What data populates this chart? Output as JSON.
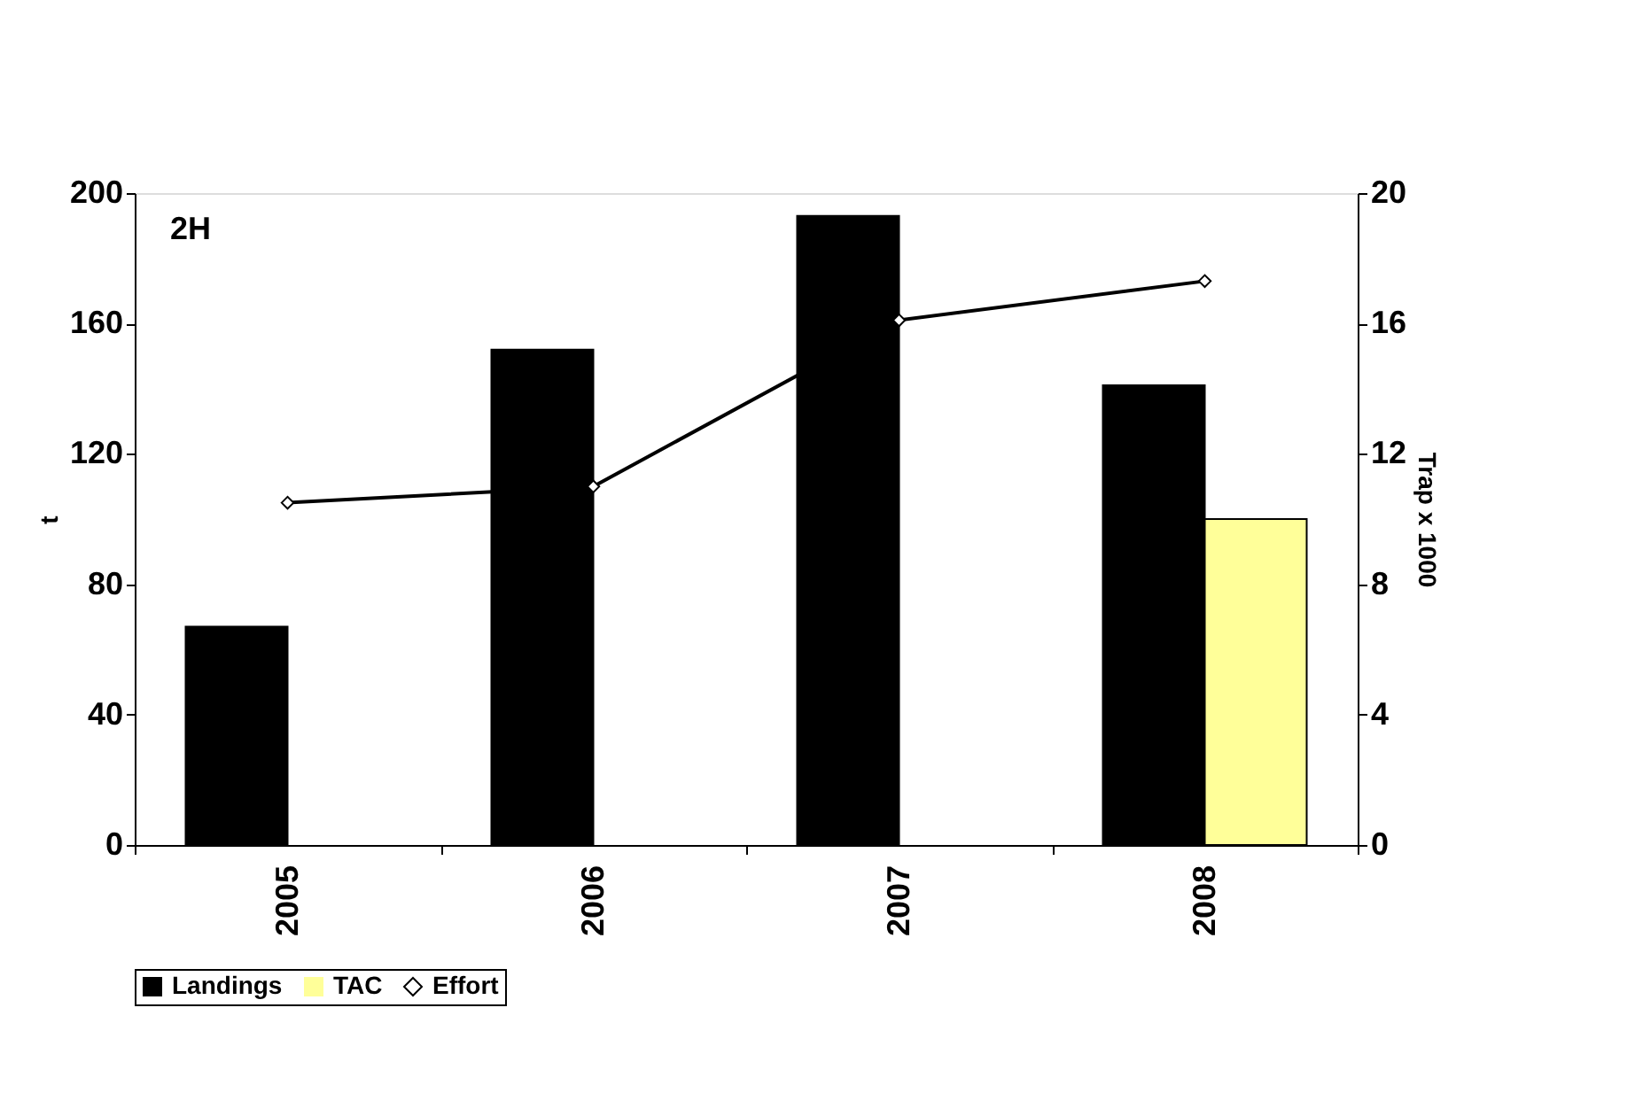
{
  "chart_data": {
    "type": "bar",
    "categories": [
      "2005",
      "2006",
      "2007",
      "2008"
    ],
    "ylabel": "t",
    "y2label": "Trap x 1000",
    "ylim": [
      0,
      200
    ],
    "yticks": [
      0,
      40,
      80,
      120,
      160,
      200
    ],
    "y2lim": [
      0,
      20
    ],
    "y2ticks": [
      0,
      4,
      8,
      12,
      16,
      20
    ],
    "annotations": [
      "2H"
    ],
    "grid": false,
    "legend": "bottom",
    "series": [
      {
        "name": "Landings",
        "color": "#000000",
        "values": [
          67,
          152,
          193,
          141
        ]
      },
      {
        "name": "TAC",
        "color": "#ffff99",
        "values": [
          null,
          null,
          null,
          100
        ]
      },
      {
        "name": "Effort",
        "type": "line",
        "axis": "y2",
        "color": "#000000",
        "marker": "diamond",
        "line_style": "solid",
        "values": [
          10.5,
          11.0,
          16.1,
          17.3
        ]
      }
    ]
  }
}
